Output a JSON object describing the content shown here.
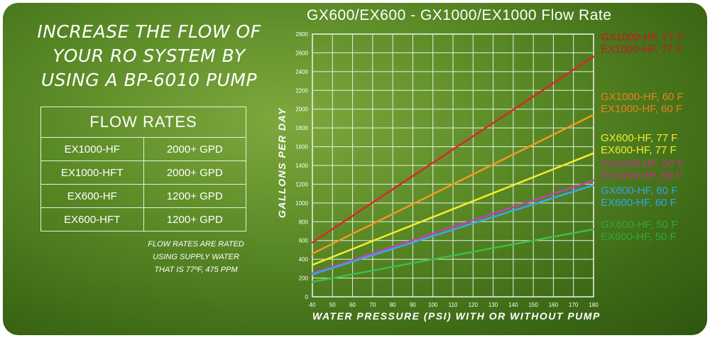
{
  "headline": [
    "INCREASE THE FLOW OF",
    "YOUR RO SYSTEM BY",
    "USING A BP-6010 PUMP"
  ],
  "table": {
    "title": "FLOW RATES",
    "rows": [
      [
        "EX1000-HF",
        "2000+ GPD"
      ],
      [
        "EX1000-HFT",
        "2000+ GPD"
      ],
      [
        "EX600-HF",
        "1200+ GPD"
      ],
      [
        "EX600-HFT",
        "1200+ GPD"
      ]
    ]
  },
  "note": [
    "FLOW RATES ARE RATED",
    "USING SUPPLY WATER",
    "THAT IS 77ºF, 475 PPM"
  ],
  "chart_data": {
    "type": "line",
    "title": "GX600/EX600 - GX1000/EX1000 Flow Rate",
    "xlabel": "WATER PRESSURE (PSI) WITH OR WITHOUT PUMP",
    "ylabel": "GALLONS PER DAY",
    "x": [
      40,
      180
    ],
    "xticks": [
      40,
      50,
      60,
      70,
      80,
      90,
      100,
      110,
      120,
      130,
      140,
      150,
      160,
      170,
      180
    ],
    "yticks": [
      0,
      200,
      400,
      600,
      800,
      1000,
      1200,
      1400,
      1600,
      1800,
      2000,
      2200,
      2400,
      2600,
      2800
    ],
    "xlim": [
      40,
      180
    ],
    "ylim": [
      0,
      2800
    ],
    "grid": true,
    "legend_position": "right",
    "series": [
      {
        "labels": [
          "GX1000-HF, 77  F",
          "EX1000-HF, 77  F"
        ],
        "values": [
          580,
          2560
        ],
        "color": "#d42a2a",
        "legend_color": "#c8181e"
      },
      {
        "labels": [
          "GX1000-HF, 60  F",
          "EX1000-HF, 60  F"
        ],
        "values": [
          460,
          1940
        ],
        "color": "#f29a20",
        "legend_color": "#e8801c"
      },
      {
        "labels": [
          "GX600-HF, 77  F",
          "EX600-HF, 77  F"
        ],
        "values": [
          340,
          1530
        ],
        "color": "#f4ee30",
        "legend_color": "#f2ec30"
      },
      {
        "labels": [
          "GX1000-HF, 50  F",
          "EX1000-HF, 50  F"
        ],
        "values": [
          250,
          1240
        ],
        "color": "#c044a8",
        "legend_color": "#c0308e"
      },
      {
        "labels": [
          "GX600-HF, 60  F",
          "EX600-HF, 60  F"
        ],
        "values": [
          240,
          1190
        ],
        "color": "#3aa8e8",
        "legend_color": "#2ea6ea"
      },
      {
        "labels": [
          "GX600-HF, 50  F",
          "EX600-HF, 50  F"
        ],
        "values": [
          160,
          720
        ],
        "color": "#3cbf48",
        "legend_color": "#2fa83a"
      }
    ]
  }
}
